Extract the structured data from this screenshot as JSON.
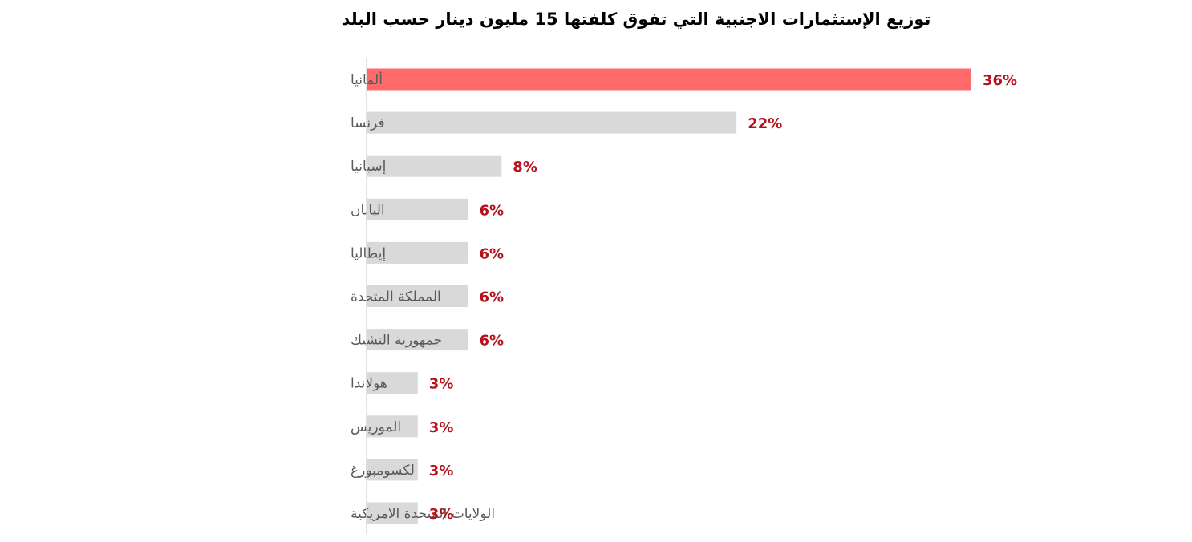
{
  "chart_data": {
    "type": "bar",
    "orientation": "horizontal",
    "title": "توزيع الإستثمارات الاجنبية التي تفوق كلفتها 15  مليون دينار حسب البلد",
    "categories": [
      "ألمانيا",
      "فرنسا",
      "إسبانيا",
      "اليابان",
      "إيطاليا",
      "المملكة المتحدة",
      "جمهورية التشيك",
      "هولاندا",
      "الموريس",
      "لكسومبورغ",
      "الولايات المتحدة الامريكية"
    ],
    "values": [
      36,
      22,
      8,
      6,
      6,
      6,
      6,
      3,
      3,
      3,
      3
    ],
    "value_labels": [
      "36%",
      "22%",
      "8%",
      "6%",
      "6%",
      "6%",
      "6%",
      "3%",
      "3%",
      "3%",
      "3%"
    ],
    "unit": "%",
    "xlim": [
      0,
      36
    ],
    "grid": false,
    "legend": "none",
    "colors": {
      "highlight": "#ff6b6b",
      "default": "#d9d9d9",
      "axis": "#d9d9d9",
      "value_label": "#b5121b",
      "category_label": "#595959"
    },
    "highlight_index": 0
  }
}
